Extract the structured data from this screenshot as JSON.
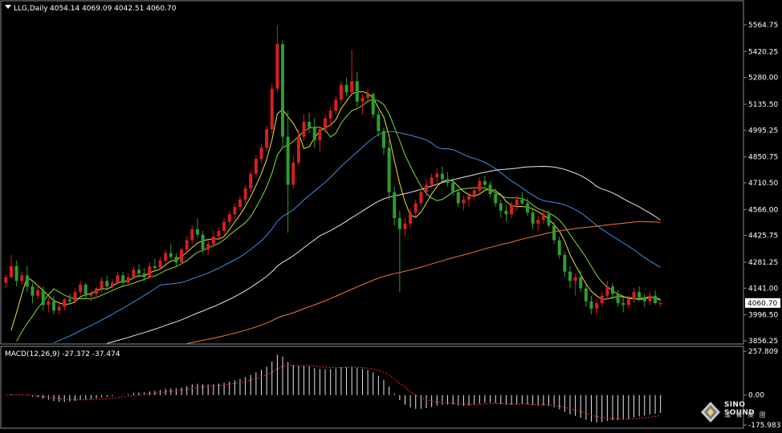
{
  "header": {
    "symbol": "LLG,Daily",
    "ohlc": "4054.14 4069.09 4042.51 4060.70"
  },
  "price_axis": {
    "ticks": [
      "5564.75",
      "5420.25",
      "5280.00",
      "5135.50",
      "4995.25",
      "4850.75",
      "4710.50",
      "4566.00",
      "4425.75",
      "4281.25",
      "4141.00",
      "3996.50",
      "3856.25"
    ],
    "current": "4060.70"
  },
  "macd_panel": {
    "label": "MACD(12,26,9) -27.372 -37.474",
    "ticks": [
      "257.809",
      "0.00",
      "-175.983"
    ]
  },
  "brand": {
    "name": "SINO SOUND",
    "sub": "漢 聲 集 團"
  },
  "colors": {
    "up": "#d81e1e",
    "down": "#2e9e2e",
    "ma_fast": "#e8e233",
    "ma_mid": "#7fdc3c",
    "ma_blue": "#3d8fe0",
    "ma_white": "#e9e9e9",
    "ma_orange": "#f07a2c",
    "macd_hist": "#e6e6e6",
    "macd_signal": "#ff2b2b"
  },
  "chart_data": {
    "type": "candlestick",
    "title": "LLG,Daily",
    "price_range": [
      3856.25,
      5564.75
    ],
    "candles": [
      [
        4170,
        4215,
        4140,
        4200
      ],
      [
        4200,
        4320,
        4190,
        4260
      ],
      [
        4260,
        4290,
        4150,
        4180
      ],
      [
        4180,
        4230,
        4160,
        4210
      ],
      [
        4210,
        4260,
        4120,
        4150
      ],
      [
        4150,
        4170,
        4060,
        4100
      ],
      [
        4100,
        4160,
        4080,
        4130
      ],
      [
        4130,
        4150,
        4020,
        4050
      ],
      [
        4050,
        4090,
        4010,
        4070
      ],
      [
        4070,
        4100,
        4000,
        4020
      ],
      [
        4020,
        4060,
        4000,
        4040
      ],
      [
        4040,
        4090,
        4020,
        4080
      ],
      [
        4080,
        4110,
        4050,
        4070
      ],
      [
        4070,
        4140,
        4060,
        4120
      ],
      [
        4120,
        4180,
        4100,
        4160
      ],
      [
        4160,
        4170,
        4080,
        4100
      ],
      [
        4100,
        4130,
        4070,
        4110
      ],
      [
        4110,
        4150,
        4090,
        4140
      ],
      [
        4140,
        4200,
        4120,
        4180
      ],
      [
        4180,
        4210,
        4130,
        4150
      ],
      [
        4150,
        4190,
        4140,
        4170
      ],
      [
        4170,
        4230,
        4160,
        4210
      ],
      [
        4210,
        4230,
        4150,
        4170
      ],
      [
        4170,
        4220,
        4160,
        4200
      ],
      [
        4200,
        4260,
        4190,
        4240
      ],
      [
        4240,
        4270,
        4200,
        4220
      ],
      [
        4220,
        4250,
        4180,
        4200
      ],
      [
        4200,
        4280,
        4190,
        4260
      ],
      [
        4260,
        4300,
        4230,
        4250
      ],
      [
        4250,
        4310,
        4240,
        4290
      ],
      [
        4290,
        4350,
        4270,
        4330
      ],
      [
        4330,
        4380,
        4300,
        4310
      ],
      [
        4310,
        4330,
        4260,
        4280
      ],
      [
        4280,
        4360,
        4270,
        4350
      ],
      [
        4350,
        4420,
        4330,
        4400
      ],
      [
        4400,
        4480,
        4380,
        4460
      ],
      [
        4460,
        4520,
        4410,
        4430
      ],
      [
        4430,
        4450,
        4330,
        4350
      ],
      [
        4350,
        4400,
        4320,
        4380
      ],
      [
        4380,
        4450,
        4360,
        4420
      ],
      [
        4420,
        4470,
        4400,
        4450
      ],
      [
        4450,
        4520,
        4430,
        4500
      ],
      [
        4500,
        4560,
        4480,
        4540
      ],
      [
        4540,
        4600,
        4510,
        4580
      ],
      [
        4580,
        4640,
        4560,
        4620
      ],
      [
        4620,
        4700,
        4600,
        4680
      ],
      [
        4680,
        4780,
        4660,
        4760
      ],
      [
        4760,
        4860,
        4740,
        4840
      ],
      [
        4840,
        4920,
        4820,
        4900
      ],
      [
        4900,
        5020,
        4880,
        5000
      ],
      [
        5000,
        5250,
        4980,
        5220
      ],
      [
        5220,
        5560,
        5200,
        5460
      ],
      [
        5460,
        5480,
        4900,
        4960
      ],
      [
        4960,
        5100,
        4440,
        4700
      ],
      [
        4700,
        4860,
        4680,
        4820
      ],
      [
        4820,
        5000,
        4800,
        4960
      ],
      [
        4960,
        5080,
        4940,
        5040
      ],
      [
        5040,
        5090,
        4980,
        5010
      ],
      [
        5010,
        5060,
        4900,
        4940
      ],
      [
        4940,
        5020,
        4880,
        5000
      ],
      [
        5000,
        5080,
        4980,
        5060
      ],
      [
        5060,
        5120,
        5020,
        5100
      ],
      [
        5100,
        5180,
        5080,
        5160
      ],
      [
        5160,
        5260,
        5140,
        5240
      ],
      [
        5240,
        5280,
        5180,
        5200
      ],
      [
        5200,
        5430,
        5180,
        5260
      ],
      [
        5260,
        5310,
        5120,
        5150
      ],
      [
        5150,
        5190,
        5080,
        5170
      ],
      [
        5170,
        5220,
        5140,
        5190
      ],
      [
        5190,
        5200,
        5060,
        5080
      ],
      [
        5080,
        5100,
        4960,
        4990
      ],
      [
        4990,
        5010,
        4860,
        4900
      ],
      [
        4900,
        4940,
        4620,
        4660
      ],
      [
        4660,
        4690,
        4480,
        4520
      ],
      [
        4520,
        4560,
        4120,
        4460
      ],
      [
        4460,
        4520,
        4420,
        4490
      ],
      [
        4490,
        4570,
        4470,
        4550
      ],
      [
        4550,
        4620,
        4530,
        4600
      ],
      [
        4600,
        4680,
        4580,
        4660
      ],
      [
        4660,
        4730,
        4640,
        4700
      ],
      [
        4700,
        4760,
        4680,
        4740
      ],
      [
        4740,
        4790,
        4700,
        4760
      ],
      [
        4760,
        4800,
        4720,
        4730
      ],
      [
        4730,
        4770,
        4690,
        4710
      ],
      [
        4710,
        4740,
        4640,
        4660
      ],
      [
        4660,
        4680,
        4580,
        4600
      ],
      [
        4600,
        4640,
        4560,
        4620
      ],
      [
        4620,
        4660,
        4580,
        4640
      ],
      [
        4640,
        4690,
        4620,
        4670
      ],
      [
        4670,
        4740,
        4650,
        4720
      ],
      [
        4720,
        4750,
        4680,
        4700
      ],
      [
        4700,
        4720,
        4630,
        4650
      ],
      [
        4650,
        4680,
        4580,
        4600
      ],
      [
        4600,
        4620,
        4520,
        4560
      ],
      [
        4560,
        4590,
        4500,
        4540
      ],
      [
        4540,
        4610,
        4520,
        4590
      ],
      [
        4590,
        4640,
        4560,
        4620
      ],
      [
        4620,
        4660,
        4590,
        4600
      ],
      [
        4600,
        4630,
        4530,
        4550
      ],
      [
        4550,
        4570,
        4460,
        4490
      ],
      [
        4490,
        4530,
        4450,
        4510
      ],
      [
        4510,
        4560,
        4490,
        4540
      ],
      [
        4540,
        4560,
        4470,
        4480
      ],
      [
        4480,
        4500,
        4380,
        4400
      ],
      [
        4400,
        4420,
        4300,
        4320
      ],
      [
        4320,
        4340,
        4200,
        4230
      ],
      [
        4230,
        4260,
        4140,
        4180
      ],
      [
        4180,
        4220,
        4100,
        4200
      ],
      [
        4200,
        4240,
        4120,
        4140
      ],
      [
        4140,
        4160,
        4040,
        4070
      ],
      [
        4070,
        4100,
        4000,
        4030
      ],
      [
        4030,
        4080,
        3996,
        4060
      ],
      [
        4060,
        4120,
        4040,
        4100
      ],
      [
        4100,
        4180,
        4080,
        4150
      ],
      [
        4150,
        4170,
        4080,
        4110
      ],
      [
        4110,
        4130,
        4040,
        4060
      ],
      [
        4060,
        4090,
        4010,
        4050
      ],
      [
        4050,
        4100,
        4030,
        4080
      ],
      [
        4080,
        4140,
        4060,
        4120
      ],
      [
        4120,
        4150,
        4070,
        4090
      ],
      [
        4090,
        4110,
        4040,
        4070
      ],
      [
        4070,
        4120,
        4050,
        4100
      ],
      [
        4100,
        4130,
        4050,
        4060
      ],
      [
        4054.14,
        4069.09,
        4042.51,
        4060.7
      ]
    ],
    "series": [
      {
        "name": "",
        "color": "#e8e233",
        "period": 5
      },
      {
        "name": "",
        "color": "#7fdc3c",
        "period": 10
      },
      {
        "name": "",
        "color": "#3d8fe0",
        "period": 30
      },
      {
        "name": "",
        "color": "#e9e9e9",
        "period": 60
      },
      {
        "name": "",
        "color": "#f07a2c",
        "period": 120
      }
    ],
    "macd": {
      "fast": 12,
      "slow": 26,
      "signal": 9,
      "range": [
        -175.983,
        257.809
      ]
    }
  }
}
